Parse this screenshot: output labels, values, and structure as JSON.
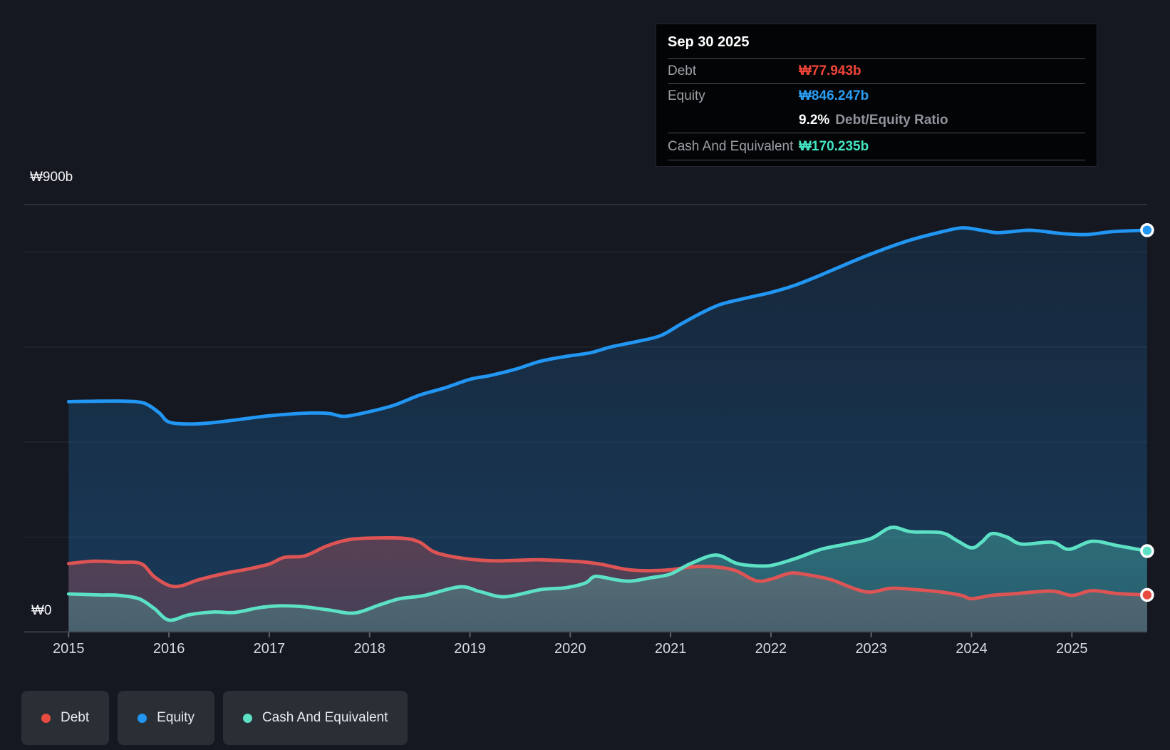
{
  "axes": {
    "y_top_label": "₩900b",
    "y_zero_label": "₩0",
    "x_years": [
      "2015",
      "2016",
      "2017",
      "2018",
      "2019",
      "2020",
      "2021",
      "2022",
      "2023",
      "2024",
      "2025"
    ]
  },
  "tooltip": {
    "date": "Sep 30 2025",
    "debt_label": "Debt",
    "debt_value": "₩77.943b",
    "equity_label": "Equity",
    "equity_value": "₩846.247b",
    "ratio_value": "9.2%",
    "ratio_label": "Debt/Equity Ratio",
    "cash_label": "Cash And Equivalent",
    "cash_value": "₩170.235b"
  },
  "legend": {
    "debt": "Debt",
    "equity": "Equity",
    "cash": "Cash And Equivalent"
  },
  "colors": {
    "background": "#151821",
    "debt_line": "#de5454",
    "debt_dot": "#e84b40",
    "debt_value_text": "#f04438",
    "equity_line": "#2196f3",
    "equity_value_text": "#2b9df4",
    "cash_line": "#5ce1c5",
    "cash_value_text": "#43e5c4",
    "grid": "#272c34",
    "grid_strong": "#3e444c",
    "tick": "#5a6069"
  },
  "chart_data": {
    "type": "area",
    "title": "",
    "x_unit": "decimal_year",
    "x_range": [
      2015.0,
      2025.75
    ],
    "ylim": [
      0,
      900
    ],
    "y_gridlines_b": [
      900,
      800,
      600,
      400,
      200,
      0
    ],
    "grid": true,
    "legend_position": "bottom-left",
    "last_point_date": "Sep 30 2025",
    "series": [
      {
        "name": "Equity",
        "unit": "₩b",
        "points": [
          [
            2015.0,
            485
          ],
          [
            2015.3,
            486
          ],
          [
            2015.55,
            486
          ],
          [
            2015.75,
            482
          ],
          [
            2015.9,
            462
          ],
          [
            2016.0,
            442
          ],
          [
            2016.2,
            438
          ],
          [
            2016.4,
            440
          ],
          [
            2016.65,
            446
          ],
          [
            2016.9,
            453
          ],
          [
            2017.15,
            458
          ],
          [
            2017.4,
            461
          ],
          [
            2017.6,
            460
          ],
          [
            2017.75,
            454
          ],
          [
            2018.0,
            464
          ],
          [
            2018.25,
            478
          ],
          [
            2018.5,
            499
          ],
          [
            2018.75,
            514
          ],
          [
            2019.0,
            532
          ],
          [
            2019.2,
            540
          ],
          [
            2019.45,
            553
          ],
          [
            2019.7,
            570
          ],
          [
            2019.95,
            580
          ],
          [
            2020.2,
            588
          ],
          [
            2020.4,
            600
          ],
          [
            2020.65,
            611
          ],
          [
            2020.9,
            624
          ],
          [
            2021.1,
            648
          ],
          [
            2021.3,
            671
          ],
          [
            2021.5,
            690
          ],
          [
            2021.75,
            703
          ],
          [
            2022.0,
            715
          ],
          [
            2022.25,
            731
          ],
          [
            2022.5,
            752
          ],
          [
            2022.7,
            770
          ],
          [
            2022.95,
            792
          ],
          [
            2023.2,
            812
          ],
          [
            2023.4,
            826
          ],
          [
            2023.65,
            840
          ],
          [
            2023.9,
            851
          ],
          [
            2024.1,
            846
          ],
          [
            2024.25,
            841
          ],
          [
            2024.4,
            843
          ],
          [
            2024.6,
            846
          ],
          [
            2024.9,
            839
          ],
          [
            2025.15,
            837
          ],
          [
            2025.4,
            843
          ],
          [
            2025.75,
            846.247
          ]
        ]
      },
      {
        "name": "Debt",
        "unit": "₩b",
        "points": [
          [
            2015.0,
            144
          ],
          [
            2015.25,
            149
          ],
          [
            2015.5,
            147
          ],
          [
            2015.72,
            144
          ],
          [
            2015.85,
            117
          ],
          [
            2016.0,
            98
          ],
          [
            2016.12,
            97
          ],
          [
            2016.3,
            110
          ],
          [
            2016.55,
            123
          ],
          [
            2016.8,
            133
          ],
          [
            2017.0,
            143
          ],
          [
            2017.15,
            157
          ],
          [
            2017.35,
            160
          ],
          [
            2017.55,
            179
          ],
          [
            2017.7,
            190
          ],
          [
            2017.85,
            196
          ],
          [
            2018.1,
            198
          ],
          [
            2018.35,
            197
          ],
          [
            2018.5,
            189
          ],
          [
            2018.65,
            168
          ],
          [
            2018.9,
            156
          ],
          [
            2019.2,
            150
          ],
          [
            2019.5,
            151
          ],
          [
            2019.7,
            152
          ],
          [
            2020.1,
            148
          ],
          [
            2020.3,
            143
          ],
          [
            2020.55,
            132
          ],
          [
            2020.75,
            129
          ],
          [
            2021.0,
            131
          ],
          [
            2021.2,
            137
          ],
          [
            2021.45,
            137
          ],
          [
            2021.65,
            129
          ],
          [
            2021.85,
            108
          ],
          [
            2022.0,
            111
          ],
          [
            2022.2,
            124
          ],
          [
            2022.4,
            119
          ],
          [
            2022.6,
            110
          ],
          [
            2022.85,
            90
          ],
          [
            2023.0,
            84
          ],
          [
            2023.2,
            92
          ],
          [
            2023.45,
            89
          ],
          [
            2023.7,
            84
          ],
          [
            2023.9,
            77
          ],
          [
            2024.0,
            70
          ],
          [
            2024.2,
            77
          ],
          [
            2024.4,
            80
          ],
          [
            2024.8,
            86
          ],
          [
            2025.0,
            77
          ],
          [
            2025.2,
            87
          ],
          [
            2025.45,
            81
          ],
          [
            2025.75,
            77.943
          ]
        ]
      },
      {
        "name": "Cash And Equivalent",
        "unit": "₩b",
        "points": [
          [
            2015.0,
            80
          ],
          [
            2015.3,
            78
          ],
          [
            2015.5,
            77
          ],
          [
            2015.7,
            70
          ],
          [
            2015.85,
            50
          ],
          [
            2016.0,
            25
          ],
          [
            2016.2,
            36
          ],
          [
            2016.45,
            42
          ],
          [
            2016.65,
            41
          ],
          [
            2016.9,
            51
          ],
          [
            2017.1,
            55
          ],
          [
            2017.35,
            53
          ],
          [
            2017.6,
            46
          ],
          [
            2017.85,
            40
          ],
          [
            2018.1,
            57
          ],
          [
            2018.3,
            70
          ],
          [
            2018.55,
            77
          ],
          [
            2018.9,
            95
          ],
          [
            2019.1,
            85
          ],
          [
            2019.35,
            74
          ],
          [
            2019.7,
            89
          ],
          [
            2019.95,
            93
          ],
          [
            2020.15,
            103
          ],
          [
            2020.25,
            117
          ],
          [
            2020.45,
            110
          ],
          [
            2020.6,
            107
          ],
          [
            2020.8,
            114
          ],
          [
            2021.0,
            122
          ],
          [
            2021.2,
            144
          ],
          [
            2021.45,
            162
          ],
          [
            2021.65,
            145
          ],
          [
            2021.8,
            140
          ],
          [
            2022.0,
            140
          ],
          [
            2022.25,
            155
          ],
          [
            2022.5,
            174
          ],
          [
            2022.75,
            185
          ],
          [
            2023.0,
            197
          ],
          [
            2023.2,
            220
          ],
          [
            2023.4,
            211
          ],
          [
            2023.7,
            209
          ],
          [
            2023.85,
            193
          ],
          [
            2024.0,
            177
          ],
          [
            2024.1,
            189
          ],
          [
            2024.2,
            207
          ],
          [
            2024.35,
            200
          ],
          [
            2024.5,
            185
          ],
          [
            2024.8,
            189
          ],
          [
            2024.97,
            174
          ],
          [
            2025.2,
            191
          ],
          [
            2025.45,
            182
          ],
          [
            2025.75,
            170.235
          ]
        ]
      }
    ]
  }
}
